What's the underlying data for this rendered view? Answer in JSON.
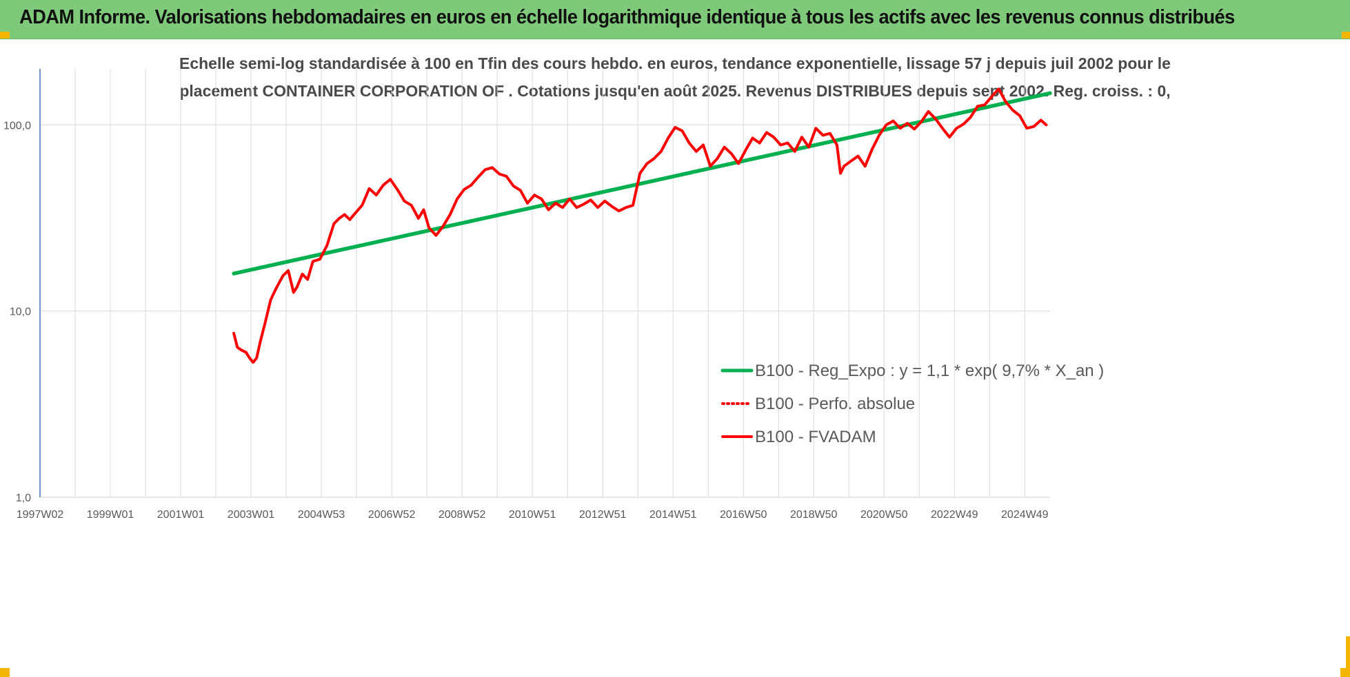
{
  "header": {
    "title": "ADAM Informe. Valorisations hebdomadaires en euros en échelle logarithmique identique à tous les actifs avec les revenus connus distribués"
  },
  "colors": {
    "banner": "#7fc97a",
    "accent_corner": "#f2b600",
    "regression": "#00b050",
    "performance": "#ff0000",
    "fvadam": "#ff0000",
    "gridline": "#d9d9d9",
    "axis": "#4472c4"
  },
  "chart_data": {
    "type": "line",
    "title_line1": "Echelle semi-log standardisée à 100 en Tfin des cours hebdo. en euros, tendance exponentielle, lissage 57 j depuis juil 2002 pour le",
    "title_line2": "placement CONTAINER CORPORATION OF . Cotations jusqu'en août 2025. Revenus DISTRIBUES depuis sept 2002. Reg. croiss. : 0,",
    "y_scale": "log",
    "ylim": [
      1,
      200
    ],
    "y_ticks": [
      1,
      10,
      100
    ],
    "y_tick_labels": [
      "1,0",
      "10,0",
      "100,0"
    ],
    "xlim": [
      1997.04,
      2025.76
    ],
    "x_ticks": [
      1997.04,
      1998.04,
      1999.04,
      2000.04,
      2001.04,
      2002.04,
      2003.04,
      2004.04,
      2005.04,
      2006.04,
      2007.04,
      2008.04,
      2009.04,
      2010.04,
      2011.04,
      2012.04,
      2013.04,
      2014.04,
      2015.04,
      2016.04,
      2017.04,
      2018.04,
      2019.04,
      2020.04,
      2021.04,
      2022.04,
      2023.04,
      2024.04,
      2025.04
    ],
    "x_tick_labels": [
      "1997W02",
      "",
      "1999W01",
      "",
      "2001W01",
      "",
      "2003W01",
      "",
      "2004W53",
      "",
      "2006W52",
      "",
      "2008W52",
      "",
      "2010W51",
      "",
      "2012W51",
      "",
      "2014W51",
      "",
      "2016W50",
      "",
      "2018W50",
      "",
      "2020W50",
      "",
      "2022W49",
      "",
      "2024W49"
    ],
    "grid": true,
    "legend_position": "bottom-right",
    "series": [
      {
        "name": "B100 - Reg_Expo : y = 1,1 * exp( 9,7% *  X_an )",
        "style": "solid",
        "color": "#00b050",
        "x": [
          2002.55,
          2025.76
        ],
        "y": [
          15.9,
          148
        ]
      },
      {
        "name": "B100 - Perfo. absolue",
        "style": "dotted",
        "color": "#ff0000",
        "x": [],
        "y": []
      },
      {
        "name": "B100 - FVADAM",
        "style": "solid",
        "color": "#ff0000",
        "x": [
          2002.55,
          2002.65,
          2002.75,
          2002.9,
          2003.0,
          2003.1,
          2003.2,
          2003.3,
          2003.45,
          2003.6,
          2003.75,
          2003.95,
          2004.1,
          2004.25,
          2004.35,
          2004.5,
          2004.65,
          2004.8,
          2005.0,
          2005.2,
          2005.4,
          2005.55,
          2005.7,
          2005.85,
          2006.0,
          2006.2,
          2006.4,
          2006.6,
          2006.8,
          2007.0,
          2007.2,
          2007.4,
          2007.6,
          2007.8,
          2007.95,
          2008.1,
          2008.3,
          2008.5,
          2008.7,
          2008.9,
          2009.1,
          2009.3,
          2009.5,
          2009.7,
          2009.9,
          2010.1,
          2010.3,
          2010.5,
          2010.7,
          2010.9,
          2011.1,
          2011.3,
          2011.5,
          2011.7,
          2011.9,
          2012.1,
          2012.3,
          2012.5,
          2012.7,
          2012.9,
          2013.1,
          2013.3,
          2013.5,
          2013.7,
          2013.9,
          2014.1,
          2014.3,
          2014.5,
          2014.7,
          2014.9,
          2015.1,
          2015.3,
          2015.5,
          2015.7,
          2015.9,
          2016.1,
          2016.3,
          2016.5,
          2016.7,
          2016.9,
          2017.1,
          2017.3,
          2017.5,
          2017.7,
          2017.9,
          2018.1,
          2018.3,
          2018.5,
          2018.7,
          2018.9,
          2019.1,
          2019.3,
          2019.5,
          2019.7,
          2019.8,
          2019.9,
          2020.1,
          2020.3,
          2020.5,
          2020.7,
          2020.9,
          2021.1,
          2021.3,
          2021.5,
          2021.7,
          2021.9,
          2022.1,
          2022.3,
          2022.5,
          2022.7,
          2022.9,
          2023.1,
          2023.3,
          2023.5,
          2023.7,
          2023.9,
          2024.1,
          2024.3,
          2024.5,
          2024.7,
          2024.9,
          2025.1,
          2025.3,
          2025.5,
          2025.65
        ],
        "y": [
          7.6,
          6.4,
          6.2,
          6.0,
          5.6,
          5.3,
          5.6,
          6.8,
          8.8,
          11.5,
          13.2,
          15.5,
          16.5,
          12.6,
          13.5,
          15.8,
          14.8,
          18.5,
          19.0,
          22.5,
          29.5,
          31.5,
          33.0,
          31.0,
          33.5,
          37.0,
          45.5,
          42.0,
          47.5,
          51.0,
          45.0,
          39.0,
          37.0,
          31.5,
          35.0,
          28.0,
          25.5,
          28.5,
          33.0,
          40.0,
          45.0,
          47.5,
          52.5,
          57.5,
          59.0,
          54.5,
          53.0,
          47.0,
          44.5,
          38.0,
          42.0,
          40.0,
          35.0,
          38.0,
          36.0,
          40.0,
          36.0,
          37.5,
          39.5,
          36.0,
          39.0,
          36.5,
          34.5,
          36.0,
          37.0,
          55.0,
          62.0,
          66.0,
          72.0,
          85.0,
          97.0,
          93.0,
          80.0,
          72.0,
          78.0,
          60.0,
          66.0,
          76.0,
          70.0,
          62.0,
          73.0,
          85.0,
          80.0,
          91.0,
          86.0,
          78.0,
          80.0,
          72.0,
          86.0,
          76.0,
          96.0,
          88.0,
          90.0,
          78.0,
          55.0,
          60.0,
          64.0,
          68.0,
          60.0,
          74.0,
          88.0,
          100.0,
          105.0,
          96.0,
          102.0,
          95.0,
          104.0,
          118.0,
          108.0,
          96.0,
          86.0,
          96.0,
          101.0,
          110.0,
          126.0,
          128.0,
          142.0,
          156.0,
          133.0,
          120.0,
          112.0,
          96.0,
          98.0,
          106.0,
          100.0
        ]
      }
    ]
  }
}
